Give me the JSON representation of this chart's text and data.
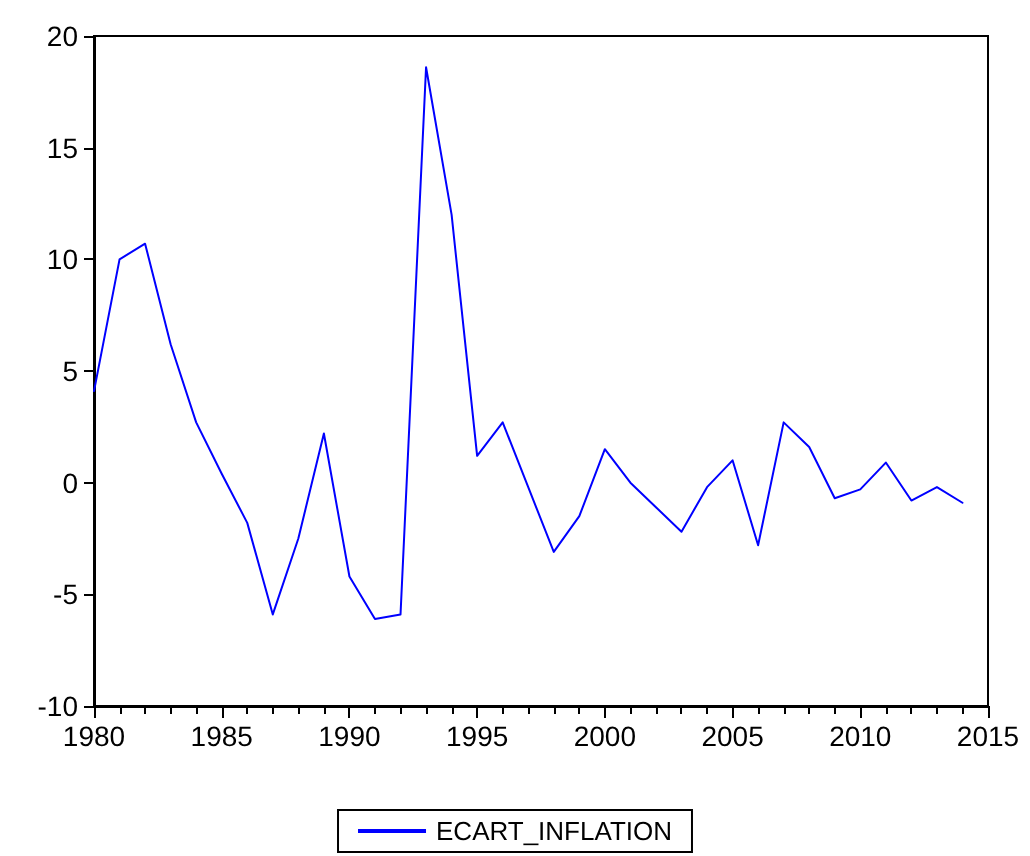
{
  "chart_data": {
    "type": "line",
    "x": [
      1980,
      1981,
      1982,
      1983,
      1984,
      1985,
      1986,
      1987,
      1988,
      1989,
      1990,
      1991,
      1992,
      1993,
      1994,
      1995,
      1996,
      1997,
      1998,
      1999,
      2000,
      2001,
      2002,
      2003,
      2004,
      2005,
      2006,
      2007,
      2008,
      2009,
      2010,
      2011,
      2012,
      2013,
      2014
    ],
    "series": [
      {
        "name": "ECART_INFLATION",
        "color": "#0000ff",
        "values": [
          4.1,
          10.0,
          10.7,
          6.2,
          2.7,
          0.4,
          -1.8,
          -5.9,
          -2.5,
          2.2,
          -4.2,
          -6.1,
          -5.9,
          18.6,
          12.0,
          1.2,
          2.7,
          -0.2,
          -3.1,
          -1.5,
          1.5,
          0.0,
          -1.1,
          -2.2,
          -0.2,
          1.0,
          -2.8,
          2.7,
          1.6,
          -0.7,
          -0.3,
          0.9,
          -0.8,
          -0.2,
          -0.9
        ]
      }
    ],
    "xlim": [
      1980,
      2015
    ],
    "xticks": [
      1980,
      1985,
      1990,
      1995,
      2000,
      2005,
      2010,
      2015
    ],
    "ylim": [
      -10,
      20
    ],
    "yticks": [
      -10,
      -5,
      0,
      5,
      10,
      15,
      20
    ],
    "grid": false,
    "legend": "bottom",
    "marker": "none",
    "line_style": "solid"
  }
}
